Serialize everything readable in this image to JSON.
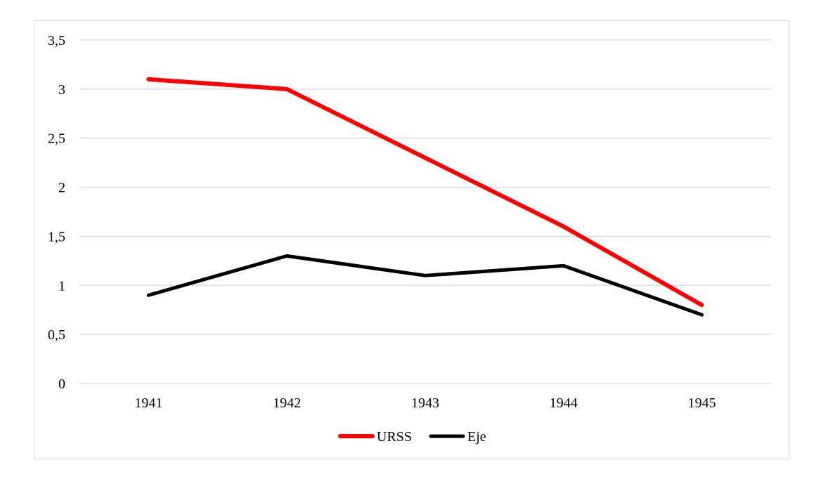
{
  "chart_data": {
    "type": "line",
    "title": "",
    "xlabel": "",
    "ylabel": "",
    "categories": [
      "1941",
      "1942",
      "1943",
      "1944",
      "1945"
    ],
    "ylim": [
      0,
      3.5
    ],
    "yticks": [
      0,
      0.5,
      1,
      1.5,
      2,
      2.5,
      3,
      3.5
    ],
    "ytick_labels": [
      "0",
      "0,5",
      "1",
      "1,5",
      "2",
      "2,5",
      "3",
      "3,5"
    ],
    "grid": "horizontal",
    "legend_position": "bottom",
    "series": [
      {
        "name": "URSS",
        "color": "#ff0000",
        "values": [
          3.1,
          3.0,
          2.3,
          1.6,
          0.8
        ]
      },
      {
        "name": "Eje",
        "color": "#000000",
        "values": [
          0.9,
          1.3,
          1.1,
          1.2,
          0.7
        ]
      }
    ]
  }
}
